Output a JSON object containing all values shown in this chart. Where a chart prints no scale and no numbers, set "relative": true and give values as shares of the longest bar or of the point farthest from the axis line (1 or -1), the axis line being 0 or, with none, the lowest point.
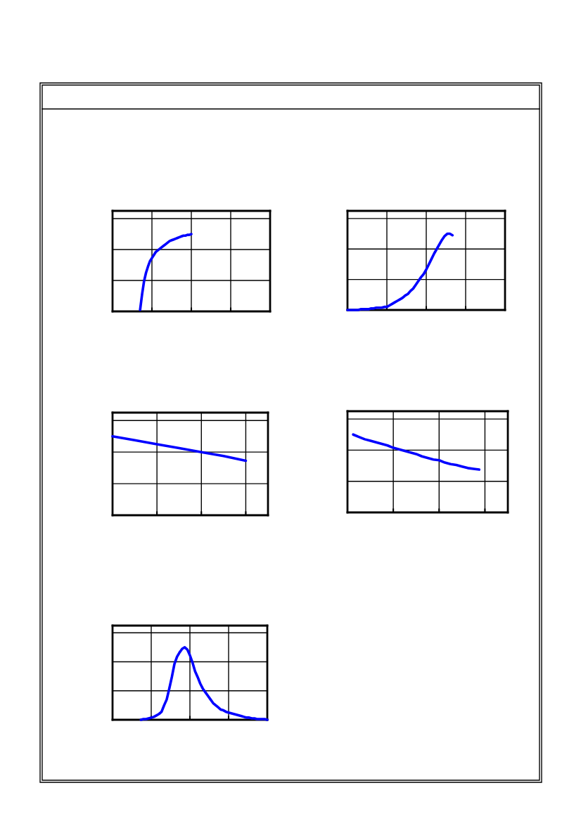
{
  "chart_data": [
    {
      "type": "line",
      "relative": true,
      "grid": true,
      "categories": [
        null,
        null,
        null,
        null,
        null,
        null,
        null,
        null,
        null,
        null,
        null,
        null,
        null,
        null,
        null,
        null,
        null,
        null,
        null,
        null,
        null,
        null,
        null,
        null,
        null,
        null,
        null,
        null,
        null,
        null,
        null,
        null,
        null,
        null,
        null,
        null,
        null,
        null,
        null,
        null,
        null,
        null,
        null,
        null,
        null,
        null,
        null,
        null,
        null,
        null,
        null,
        null,
        null,
        null,
        null,
        null,
        null,
        null,
        null,
        null,
        null,
        null,
        null,
        null,
        null,
        null,
        null,
        null,
        null,
        null,
        null,
        null,
        null,
        null,
        null,
        null,
        null,
        null,
        null,
        null,
        null
      ],
      "series": [
        {
          "color": "#0000ff",
          "values": [
            null,
            null,
            null,
            null,
            null,
            null,
            null,
            null,
            null,
            null,
            null,
            null,
            null,
            null,
            0.02,
            0.22,
            0.39,
            0.5,
            0.58,
            0.65,
            0.69,
            0.73,
            0.77,
            0.79,
            0.81,
            0.83,
            0.85,
            0.87,
            0.89,
            0.91,
            0.92,
            0.93,
            0.94,
            0.95,
            0.96,
            0.97,
            0.98,
            0.98,
            0.99,
            0.99,
            1.0,
            null,
            null,
            null,
            null,
            null,
            null,
            null,
            null,
            null,
            null,
            null,
            null,
            null,
            null,
            null,
            null,
            null,
            null,
            null,
            null,
            null,
            null,
            null,
            null,
            null,
            null,
            null,
            null,
            null,
            null,
            null,
            null,
            null,
            null,
            null,
            null,
            null,
            null,
            null,
            null
          ]
        }
      ]
    },
    {
      "type": "line",
      "relative": true,
      "grid": true,
      "categories": [
        null,
        null,
        null,
        null,
        null,
        null,
        null,
        null,
        null,
        null,
        null,
        null,
        null,
        null,
        null,
        null,
        null,
        null,
        null,
        null,
        null,
        null,
        null,
        null,
        null,
        null,
        null,
        null,
        null,
        null,
        null,
        null,
        null,
        null,
        null,
        null,
        null,
        null,
        null,
        null,
        null,
        null,
        null,
        null,
        null,
        null,
        null,
        null,
        null,
        null,
        null,
        null,
        null,
        null,
        null,
        null,
        null,
        null,
        null,
        null,
        null
      ],
      "series": [
        {
          "color": "#0000ff",
          "values": [
            0,
            0,
            0,
            0,
            0,
            0.01,
            0.01,
            0.01,
            0.01,
            0.02,
            0.02,
            0.03,
            0.03,
            0.03,
            0.04,
            0.04,
            0.06,
            0.08,
            0.1,
            0.12,
            0.14,
            0.16,
            0.19,
            0.21,
            0.25,
            0.28,
            0.33,
            0.38,
            0.43,
            0.47,
            0.53,
            0.6,
            0.67,
            0.74,
            0.8,
            0.86,
            0.92,
            0.97,
            1.0,
            1.0,
            0.98,
            null,
            null,
            null,
            null,
            null,
            null,
            null,
            null,
            null,
            null,
            null,
            null,
            null,
            null,
            null,
            null,
            null,
            null,
            null,
            null
          ]
        }
      ]
    },
    {
      "type": "line",
      "relative": true,
      "grid": true,
      "categories": [
        null,
        null,
        null,
        null,
        null,
        null,
        null,
        null
      ],
      "series": [
        {
          "color": "#0000ff",
          "values": [
            1.0,
            0.95,
            0.9,
            0.85,
            0.8,
            0.75,
            0.69,
            null
          ]
        }
      ]
    },
    {
      "type": "line",
      "relative": true,
      "grid": true,
      "categories": [
        null,
        null,
        null,
        null,
        null,
        null,
        null,
        null,
        null,
        null,
        null,
        null,
        null,
        null,
        null,
        null,
        null,
        null,
        null,
        null,
        null,
        null,
        null,
        null,
        null,
        null,
        null,
        null,
        null
      ],
      "series": [
        {
          "color": "#0000ff",
          "values": [
            null,
            1.0,
            0.97,
            0.94,
            0.92,
            0.9,
            0.88,
            0.86,
            0.83,
            0.81,
            0.79,
            0.77,
            0.75,
            0.72,
            0.7,
            0.68,
            0.67,
            0.64,
            0.62,
            0.61,
            0.59,
            0.57,
            0.56,
            0.55,
            null,
            null,
            null,
            null,
            null
          ]
        }
      ]
    },
    {
      "type": "line",
      "relative": true,
      "grid": true,
      "categories": [
        null,
        null,
        null,
        null,
        null,
        null,
        null,
        null,
        null,
        null,
        null,
        null,
        null,
        null,
        null,
        null,
        null,
        null,
        null,
        null,
        null,
        null,
        null,
        null,
        null,
        null,
        null,
        null,
        null,
        null,
        null,
        null,
        null,
        null,
        null,
        null,
        null,
        null,
        null,
        null,
        null,
        null,
        null,
        null,
        null,
        null,
        null,
        null,
        null,
        null,
        null,
        null,
        null,
        null,
        null,
        null,
        null,
        null,
        null,
        null,
        null
      ],
      "series": [
        {
          "color": "#0000ff",
          "values": [
            null,
            null,
            null,
            null,
            null,
            null,
            null,
            null,
            null,
            null,
            null,
            0.0,
            0.01,
            0.01,
            0.02,
            0.03,
            0.04,
            0.06,
            0.08,
            0.11,
            0.2,
            0.28,
            0.43,
            0.59,
            0.77,
            0.87,
            0.93,
            0.98,
            1.0,
            0.97,
            0.89,
            0.79,
            0.67,
            0.59,
            0.5,
            0.43,
            0.38,
            0.33,
            0.28,
            0.23,
            0.2,
            0.17,
            0.14,
            0.13,
            0.11,
            0.1,
            0.09,
            0.08,
            0.07,
            0.06,
            0.05,
            0.04,
            0.03,
            0.03,
            0.02,
            0.02,
            0.01,
            0.01,
            0.01,
            0.01,
            0.0
          ]
        }
      ]
    }
  ]
}
